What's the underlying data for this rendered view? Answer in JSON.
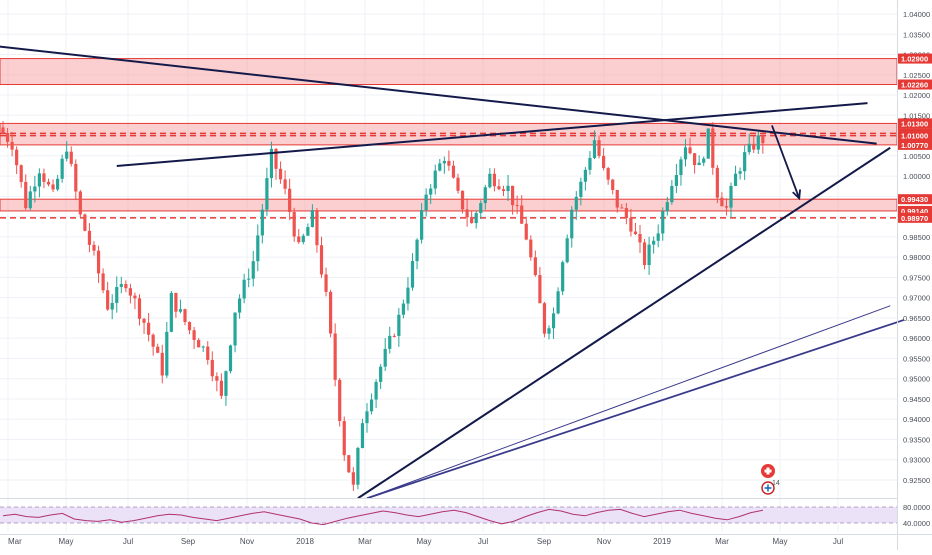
{
  "chart_data": {
    "type": "candlestick",
    "title": "",
    "xlabel": "",
    "ylabel": "",
    "ylim": [
      0.92,
      1.042
    ],
    "y_ticks": [
      "1.04000",
      "1.03500",
      "1.03000",
      "1.02500",
      "1.02000",
      "1.01500",
      "1.01000",
      "1.00500",
      "1.00000",
      "0.99500",
      "0.99000",
      "0.98500",
      "0.98000",
      "0.97500",
      "0.97000",
      "0.96500",
      "0.96000",
      "0.95500",
      "0.95000",
      "0.94500",
      "0.94000",
      "0.93500",
      "0.93000",
      "0.92500"
    ],
    "x_tick_labels": [
      "Mar",
      "May",
      "Jul",
      "Sep",
      "Nov",
      "2018",
      "Mar",
      "May",
      "Jul",
      "Sep",
      "Nov",
      "2019",
      "Mar",
      "May",
      "Jul"
    ],
    "grid": true,
    "colors": {
      "up": "#26a69a",
      "down": "#ef5350",
      "zone": "#f7a5a7",
      "zone_edge": "#e53935",
      "trendline": "#131a4a",
      "channel": "#3a3a8c",
      "label_bg": "#e53935",
      "rsi": "#b0326e",
      "rsi_band": "#ebe2f7"
    },
    "price_tags": [
      "1.02900",
      "1.02260",
      "1.01300",
      "1.01055",
      "1.01000",
      "1.00800",
      "1.00770",
      "0.99430",
      "0.99140",
      "0.98970"
    ],
    "price_tag_values": [
      1.029,
      1.0226,
      1.013,
      1.01055,
      1.01,
      1.008,
      1.0077,
      0.9943,
      0.9914,
      0.9897
    ],
    "zones": [
      {
        "from": 1.0226,
        "to": 1.029
      },
      {
        "from": 1.0077,
        "to": 1.013
      },
      {
        "from": 0.9914,
        "to": 0.9943
      }
    ],
    "dashed_levels": [
      1.01055,
      1.01,
      0.9897
    ],
    "price_path": [
      [
        0,
        1.012
      ],
      [
        3,
        1.008
      ],
      [
        6,
        0.993
      ],
      [
        9,
        1.002
      ],
      [
        12,
        0.995
      ],
      [
        15,
        1.0075
      ],
      [
        18,
        0.99
      ],
      [
        21,
        0.98
      ],
      [
        24,
        0.968
      ],
      [
        28,
        0.974
      ],
      [
        32,
        0.964
      ],
      [
        36,
        0.952
      ],
      [
        38,
        0.97
      ],
      [
        42,
        0.962
      ],
      [
        46,
        0.956
      ],
      [
        49,
        0.945
      ],
      [
        52,
        0.967
      ],
      [
        56,
        0.979
      ],
      [
        60,
        1.005
      ],
      [
        63,
        0.996
      ],
      [
        66,
        0.982
      ],
      [
        69,
        0.99
      ],
      [
        72,
        0.97
      ],
      [
        74,
        0.95
      ],
      [
        76,
        0.932
      ],
      [
        78,
        0.923
      ],
      [
        80,
        0.94
      ],
      [
        84,
        0.953
      ],
      [
        88,
        0.965
      ],
      [
        91,
        0.978
      ],
      [
        94,
        0.996
      ],
      [
        98,
        1.005
      ],
      [
        101,
        0.995
      ],
      [
        104,
        0.988
      ],
      [
        108,
        1.0
      ],
      [
        112,
        0.997
      ],
      [
        116,
        0.985
      ],
      [
        118,
        0.974
      ],
      [
        120,
        0.962
      ],
      [
        122,
        0.966
      ],
      [
        124,
        0.98
      ],
      [
        126,
        0.992
      ],
      [
        128,
        0.998
      ],
      [
        131,
        1.009
      ],
      [
        133,
        1.001
      ],
      [
        136,
        0.993
      ],
      [
        139,
        0.988
      ],
      [
        142,
        0.979
      ],
      [
        145,
        0.987
      ],
      [
        148,
        0.999
      ],
      [
        151,
        1.008
      ],
      [
        154,
        1.002
      ],
      [
        156,
        1.01
      ],
      [
        158,
        0.996
      ],
      [
        160,
        0.992
      ],
      [
        162,
        1.0
      ],
      [
        164,
        1.005
      ],
      [
        167,
        1.009
      ]
    ],
    "candle_count": 168,
    "trendlines": [
      {
        "kind": "descending",
        "p1": [
          -1,
          1.032
        ],
        "p2": [
          192,
          1.008
        ]
      },
      {
        "kind": "rising-resistance",
        "p1": [
          25,
          1.0025
        ],
        "p2": [
          190,
          1.018
        ]
      },
      {
        "kind": "rising-support",
        "p1": [
          78,
          0.9205
        ],
        "p2": [
          195,
          1.007
        ]
      },
      {
        "kind": "channel-upper",
        "p1": [
          80,
          0.9205
        ],
        "p2": [
          195,
          0.968
        ]
      },
      {
        "kind": "channel-lower",
        "p1": [
          80,
          0.9205
        ],
        "p2": [
          198,
          0.9645
        ]
      }
    ],
    "projection_arrow": {
      "from": [
        169,
        1.0125
      ],
      "to": [
        175,
        0.9945
      ]
    },
    "rsi": {
      "scale": [
        "80.0000",
        "40.0000"
      ],
      "values": [
        58,
        62,
        56,
        54,
        60,
        64,
        50,
        46,
        44,
        48,
        42,
        46,
        52,
        58,
        62,
        60,
        54,
        50,
        46,
        52,
        58,
        64,
        68,
        62,
        56,
        50,
        40,
        36,
        44,
        52,
        58,
        64,
        70,
        66,
        60,
        56,
        62,
        68,
        72,
        66,
        56,
        46,
        38,
        44,
        56,
        66,
        74,
        70,
        62,
        58,
        66,
        72,
        74,
        64,
        56,
        62,
        68,
        72,
        64,
        58,
        52,
        48,
        56,
        66,
        72
      ]
    }
  }
}
